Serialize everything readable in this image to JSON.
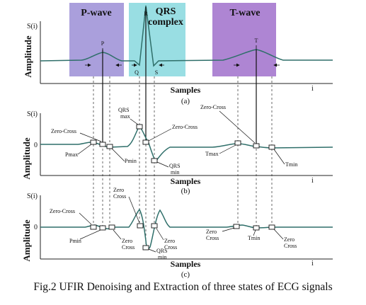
{
  "panel_a": {
    "y_axis_label": "Amplitude",
    "y_symbol": "S(i)",
    "x_axis_label": "Samples",
    "x_index": "i",
    "panel_label": "(a)",
    "regions": [
      {
        "lines": [
          "P-wave"
        ],
        "color": "#8d7fd0"
      },
      {
        "lines": [
          "QRS",
          "complex"
        ],
        "color": "#7fd6dc"
      },
      {
        "lines": [
          "T-wave"
        ],
        "color": "#9a66c8"
      }
    ],
    "peak_labels": {
      "r": "R",
      "p": "P",
      "t": "T",
      "q": "Q",
      "s": "S"
    }
  },
  "panel_b": {
    "y_axis_label": "Amplitude",
    "y_symbol": "S(i)",
    "zero_tick": "0",
    "x_axis_label": "Samples",
    "x_index": "i",
    "panel_label": "(b)",
    "annotations": {
      "zero_cross_left": "Zero-Cross",
      "pmax": "Pmax",
      "pmin": "Pmin",
      "qrs_max_1": "QRS",
      "qrs_max_2": "max",
      "zero_cross_mid": "Zero-Cross",
      "qrs_min_1": "QRS",
      "qrs_min_2": "min",
      "zero_cross_right": "Zero-Cross",
      "tmax": "Tmax",
      "tmin": "Tmin"
    }
  },
  "panel_c": {
    "y_axis_label": "Amplitude",
    "y_symbol": "S(i)",
    "zero_tick": "0",
    "x_axis_label": "Samples",
    "x_index": "i",
    "panel_label": "(c)",
    "annotations": {
      "zero_cross_left": "Zero-Cross",
      "pmin": "Pmin",
      "zero_cross_b1": "Zero",
      "zero_cross_b2": "Cross",
      "zero_cross_top1": "Zero",
      "zero_cross_top2": "Cross",
      "zero_cross_m1": "Zero",
      "zero_cross_m2": "Cross",
      "qrs_min_1": "QRS",
      "qrs_min_2": "min",
      "zero_cross_t1": "Zero",
      "zero_cross_t2": "Cross",
      "tmin": "Tmin",
      "zero_cross_r1": "Zero",
      "zero_cross_r2": "Cross"
    }
  },
  "caption": "Fig.2  UFIR Denoising and Extraction of three states of ECG signals",
  "colors": {
    "signal": "#2f6f6a",
    "axis": "#222222"
  }
}
